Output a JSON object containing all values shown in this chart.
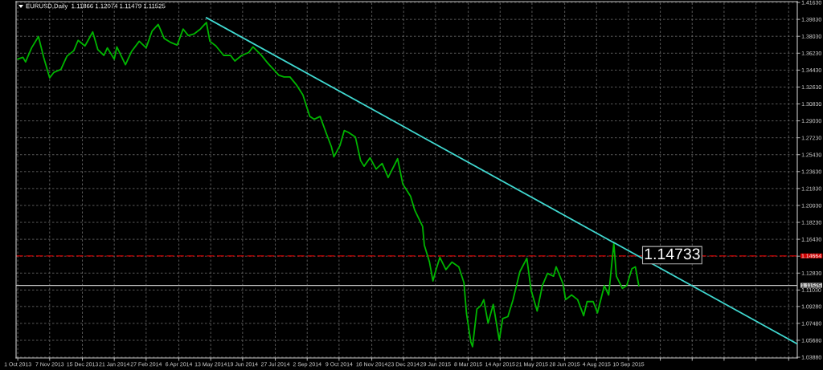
{
  "chart_data": {
    "type": "line",
    "title": "EURUSD,Daily  1.11866 1.12074 1.11479 1.11525",
    "xlim": [
      "2013-09-29",
      "2016-03-24"
    ],
    "ylim": [
      1.038,
      1.4172
    ],
    "xticks": [
      {
        "value": "2013-10-01",
        "label": "1 Oct 2013"
      },
      {
        "value": "2013-11-07",
        "label": "7 Nov 2013"
      },
      {
        "value": "2013-12-15",
        "label": "15 Dec 2013"
      },
      {
        "value": "2014-01-21",
        "label": "21 Jan 2014"
      },
      {
        "value": "2014-02-27",
        "label": "27 Feb 2014"
      },
      {
        "value": "2014-04-06",
        "label": "6 Apr 2014"
      },
      {
        "value": "2014-05-13",
        "label": "13 May 2014"
      },
      {
        "value": "2014-06-19",
        "label": "19 Jun 2014"
      },
      {
        "value": "2014-07-27",
        "label": "27 Jul 2014"
      },
      {
        "value": "2014-09-02",
        "label": "2 Sep 2014"
      },
      {
        "value": "2014-10-09",
        "label": "9 Oct 2014"
      },
      {
        "value": "2014-11-16",
        "label": "16 Nov 2014"
      },
      {
        "value": "2014-12-23",
        "label": "23 Dec 2014"
      },
      {
        "value": "2015-01-29",
        "label": "29 Jan 2015"
      },
      {
        "value": "2015-03-08",
        "label": "8 Mar 2015"
      },
      {
        "value": "2015-04-14",
        "label": "14 Apr 2015"
      },
      {
        "value": "2015-05-21",
        "label": "21 May 2015"
      },
      {
        "value": "2015-06-28",
        "label": "28 Jun 2015"
      },
      {
        "value": "2015-08-04",
        "label": "4 Aug 2015"
      },
      {
        "value": "2015-09-10",
        "label": "10 Sep 2015"
      },
      {
        "value": "2015-10-17",
        "label": null
      },
      {
        "value": "2015-11-23",
        "label": null
      },
      {
        "value": "2015-12-30",
        "label": null
      },
      {
        "value": "2016-02-05",
        "label": null
      },
      {
        "value": "2016-03-14",
        "label": null
      }
    ],
    "yticks": [
      {
        "value": 1.4163,
        "label": "1.41630"
      },
      {
        "value": 1.3983,
        "label": "1.39830"
      },
      {
        "value": 1.3803,
        "label": "1.38030"
      },
      {
        "value": 1.3623,
        "label": "1.36230"
      },
      {
        "value": 1.3443,
        "label": "1.34430"
      },
      {
        "value": 1.3263,
        "label": "1.32630"
      },
      {
        "value": 1.3083,
        "label": "1.30830"
      },
      {
        "value": 1.2903,
        "label": "1.29030"
      },
      {
        "value": 1.2723,
        "label": "1.27230"
      },
      {
        "value": 1.2543,
        "label": "1.25430"
      },
      {
        "value": 1.2363,
        "label": "1.23630"
      },
      {
        "value": 1.2183,
        "label": "1.21830"
      },
      {
        "value": 1.2003,
        "label": "1.20030"
      },
      {
        "value": 1.1823,
        "label": "1.18230"
      },
      {
        "value": 1.1643,
        "label": "1.16430"
      },
      {
        "value": 1.1463,
        "label": null
      },
      {
        "value": 1.1283,
        "label": "1.12830"
      },
      {
        "value": 1.1103,
        "label": "1.11030"
      },
      {
        "value": 1.0928,
        "label": "1.09280"
      },
      {
        "value": 1.0748,
        "label": "1.07480"
      },
      {
        "value": 1.0568,
        "label": "1.05680"
      },
      {
        "value": 1.0388,
        "label": "1.03880"
      }
    ],
    "grid": true,
    "series": [
      {
        "color": "#00b400",
        "x": [
          "2013-10-01",
          "2013-10-07",
          "2013-10-10",
          "2013-10-17",
          "2013-10-25",
          "2013-10-31",
          "2013-11-07",
          "2013-11-12",
          "2013-11-20",
          "2013-11-27",
          "2013-12-05",
          "2013-12-10",
          "2013-12-18",
          "2013-12-27",
          "2014-01-02",
          "2014-01-09",
          "2014-01-13",
          "2014-01-21",
          "2014-01-24",
          "2014-02-03",
          "2014-02-10",
          "2014-02-19",
          "2014-02-27",
          "2014-03-06",
          "2014-03-13",
          "2014-03-20",
          "2014-03-27",
          "2014-04-04",
          "2014-04-11",
          "2014-04-17",
          "2014-04-24",
          "2014-05-01",
          "2014-05-08",
          "2014-05-12",
          "2014-05-19",
          "2014-05-28",
          "2014-06-05",
          "2014-06-10",
          "2014-06-18",
          "2014-06-26",
          "2014-07-01",
          "2014-07-10",
          "2014-07-18",
          "2014-07-24",
          "2014-07-31",
          "2014-08-06",
          "2014-08-13",
          "2014-08-21",
          "2014-08-28",
          "2014-09-05",
          "2014-09-10",
          "2014-09-17",
          "2014-09-25",
          "2014-09-30",
          "2014-10-03",
          "2014-10-10",
          "2014-10-15",
          "2014-10-20",
          "2014-10-28",
          "2014-11-03",
          "2014-11-07",
          "2014-11-14",
          "2014-11-21",
          "2014-11-28",
          "2014-12-05",
          "2014-12-16",
          "2014-12-22",
          "2014-12-31",
          "2015-01-05",
          "2015-01-14",
          "2015-01-16",
          "2015-01-22",
          "2015-01-26",
          "2015-01-29",
          "2015-02-03",
          "2015-02-10",
          "2015-02-17",
          "2015-02-25",
          "2015-03-03",
          "2015-03-06",
          "2015-03-11",
          "2015-03-13",
          "2015-03-18",
          "2015-03-23",
          "2015-03-26",
          "2015-03-31",
          "2015-04-06",
          "2015-04-13",
          "2015-04-17",
          "2015-04-23",
          "2015-04-29",
          "2015-05-07",
          "2015-05-15",
          "2015-05-20",
          "2015-05-27",
          "2015-06-02",
          "2015-06-08",
          "2015-06-15",
          "2015-06-18",
          "2015-06-26",
          "2015-06-29",
          "2015-07-06",
          "2015-07-13",
          "2015-07-20",
          "2015-07-24",
          "2015-07-31",
          "2015-08-05",
          "2015-08-13",
          "2015-08-18",
          "2015-08-24",
          "2015-08-27",
          "2015-09-03",
          "2015-09-08",
          "2015-09-14",
          "2015-09-18",
          "2015-09-22"
        ],
        "values": [
          1.356,
          1.358,
          1.353,
          1.368,
          1.38,
          1.358,
          1.336,
          1.342,
          1.345,
          1.359,
          1.365,
          1.376,
          1.37,
          1.385,
          1.366,
          1.36,
          1.368,
          1.356,
          1.369,
          1.35,
          1.364,
          1.375,
          1.368,
          1.386,
          1.393,
          1.378,
          1.374,
          1.371,
          1.388,
          1.381,
          1.383,
          1.388,
          1.395,
          1.375,
          1.37,
          1.36,
          1.36,
          1.354,
          1.36,
          1.363,
          1.369,
          1.361,
          1.352,
          1.346,
          1.339,
          1.337,
          1.337,
          1.328,
          1.318,
          1.295,
          1.292,
          1.295,
          1.275,
          1.263,
          1.252,
          1.264,
          1.28,
          1.278,
          1.273,
          1.248,
          1.242,
          1.251,
          1.239,
          1.245,
          1.23,
          1.25,
          1.223,
          1.21,
          1.195,
          1.178,
          1.158,
          1.14,
          1.12,
          1.13,
          1.145,
          1.132,
          1.14,
          1.135,
          1.118,
          1.085,
          1.055,
          1.05,
          1.09,
          1.094,
          1.1,
          1.075,
          1.095,
          1.057,
          1.08,
          1.082,
          1.1,
          1.13,
          1.144,
          1.11,
          1.088,
          1.115,
          1.128,
          1.125,
          1.135,
          1.117,
          1.1,
          1.105,
          1.1,
          1.083,
          1.098,
          1.098,
          1.086,
          1.115,
          1.105,
          1.16,
          1.125,
          1.112,
          1.115,
          1.133,
          1.135,
          1.115
        ]
      },
      {
        "color": "#40d8d0",
        "x": [
          "2014-05-08",
          "2016-03-24"
        ],
        "values": [
          1.4,
          1.053
        ]
      }
    ],
    "ref_lines": [
      {
        "axis": "y",
        "value": 1.14664,
        "label": "1.14664",
        "color": "#d00000",
        "line_style": "dashed"
      },
      {
        "axis": "y",
        "value": 1.11525,
        "label": "1.11525",
        "color": "#c8c8c8",
        "line_style": "solid"
      }
    ],
    "annotations": [
      {
        "text": "1.14733",
        "x": "2015-09-28",
        "y": 1.14733
      }
    ]
  }
}
